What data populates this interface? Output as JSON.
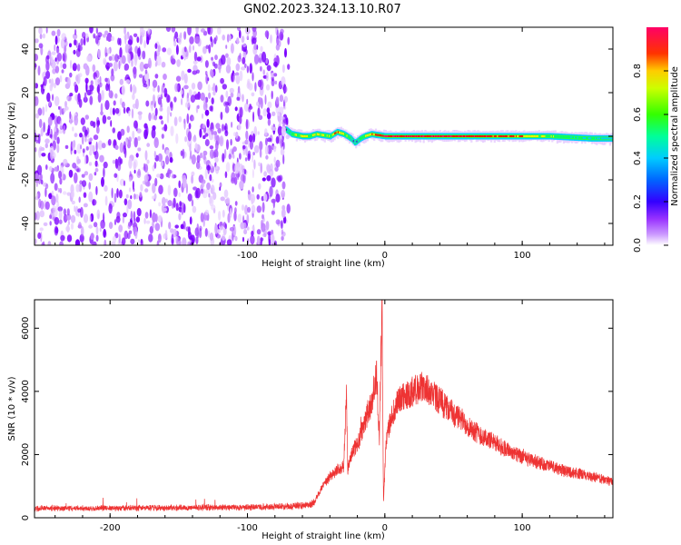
{
  "figure_title": "GN02.2023.324.13.10.R07",
  "chart_data": [
    {
      "type": "heatmap",
      "xlabel": "Height of straight line (km)",
      "ylabel": "Frequency (Hz)",
      "xlim": [
        -255,
        166
      ],
      "ylim": [
        -50,
        50
      ],
      "x_ticks": [
        -200,
        -100,
        0,
        100
      ],
      "y_ticks": [
        -40,
        -20,
        0,
        20,
        40
      ],
      "colorbar": {
        "label": "Normalized spectral amplitude",
        "range": [
          0,
          1
        ],
        "ticks": [
          0.0,
          0.2,
          0.4,
          0.6,
          0.8
        ],
        "palette": [
          "#ffffff",
          "#9933ff",
          "#3300ff",
          "#00ccff",
          "#00ff66",
          "#ffee00",
          "#ff0000",
          "#ff0066"
        ]
      },
      "noise_region": {
        "x_range": [
          -255,
          -70
        ],
        "freq_range": [
          -50,
          50
        ],
        "amplitude": 0.1
      },
      "signal_track": {
        "description_values": "dominant frequency (Hz) vs height (km)",
        "x": [
          -72,
          -68,
          -60,
          -55,
          -50,
          -40,
          -35,
          -30,
          -25,
          -22,
          -20,
          -18,
          -15,
          -10,
          0,
          20,
          50,
          80,
          100,
          120,
          150,
          166
        ],
        "y": [
          3,
          1,
          0,
          0,
          1,
          0,
          2,
          1,
          -1,
          -3,
          -2,
          -1,
          0,
          1,
          0,
          0,
          0,
          0,
          0,
          0,
          -1,
          -1
        ],
        "amplitude": [
          0.3,
          0.6,
          0.7,
          0.6,
          0.7,
          0.6,
          0.8,
          0.7,
          0.5,
          0.3,
          0.4,
          0.6,
          0.7,
          0.8,
          0.9,
          0.9,
          0.9,
          0.85,
          0.8,
          0.6,
          0.5,
          0.4
        ]
      }
    },
    {
      "type": "line",
      "xlabel": "Height of straight line (km)",
      "ylabel": "SNR (10 * v/v)",
      "xlim": [
        -255,
        166
      ],
      "ylim": [
        0,
        6900
      ],
      "x_ticks": [
        -200,
        -100,
        0,
        100
      ],
      "y_ticks": [
        0,
        2000,
        4000,
        6000
      ],
      "series": [
        {
          "color": "#ee3333",
          "x": [
            -255,
            -200,
            -150,
            -100,
            -60,
            -52,
            -48,
            -40,
            -35,
            -30,
            -28,
            -27,
            -25,
            -20,
            -15,
            -10,
            -6,
            -4,
            -2,
            -1,
            1,
            5,
            10,
            20,
            28,
            35,
            50,
            70,
            100,
            130,
            166
          ],
          "y": [
            300,
            300,
            320,
            330,
            380,
            450,
            800,
            1300,
            1500,
            1600,
            3900,
            1500,
            2000,
            2300,
            3000,
            3600,
            4500,
            2500,
            6800,
            500,
            2500,
            3200,
            3700,
            4000,
            4150,
            3900,
            3300,
            2600,
            1900,
            1500,
            1150
          ],
          "noise_amplitude": 300
        }
      ]
    }
  ]
}
